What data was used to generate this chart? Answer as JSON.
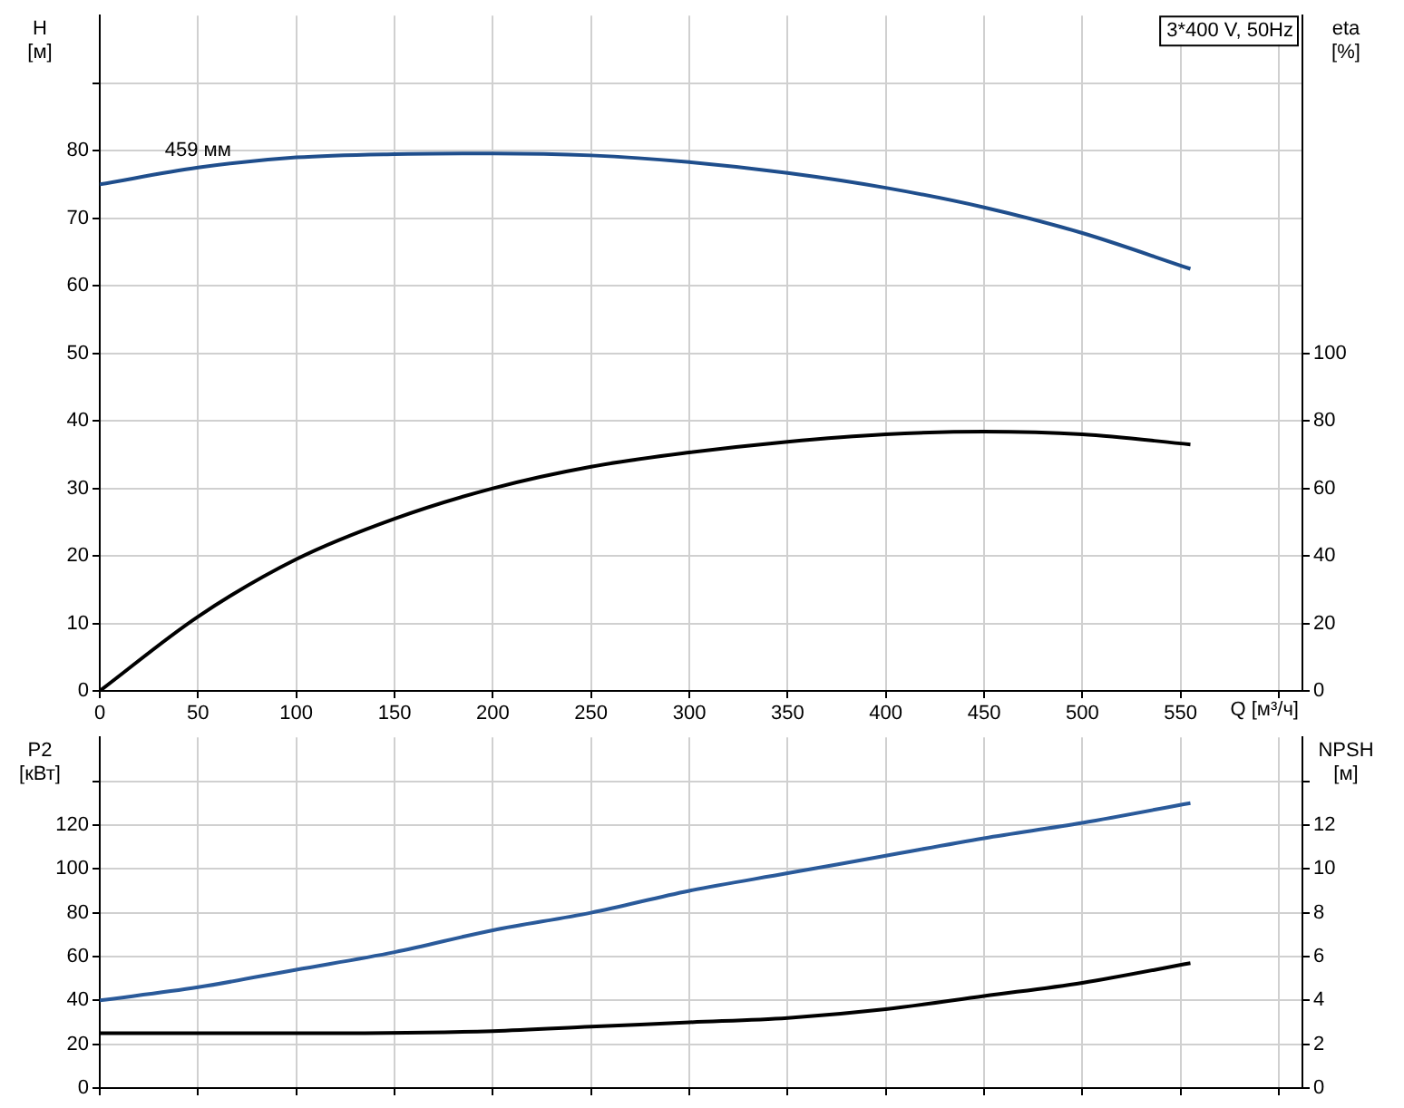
{
  "chart_data": [
    {
      "type": "line",
      "ylabel": "H [м]",
      "y2label": "eta [%]",
      "xlabel": "Q [м³/ч]",
      "annotations": [
        "3*400 V, 50Hz",
        {
          "text": "459 мм",
          "x": 50,
          "y": 77.5
        }
      ],
      "series": [
        {
          "color": "#1f4e8c",
          "x": [
            0,
            50,
            100,
            150,
            200,
            250,
            300,
            350,
            400,
            450,
            500,
            555
          ],
          "values": [
            75,
            77.5,
            79,
            79.5,
            79.6,
            79.3,
            78.3,
            76.7,
            74.5,
            71.6,
            67.8,
            62.5
          ]
        },
        {
          "color": "#000000",
          "axis": "y2",
          "x": [
            0,
            50,
            100,
            150,
            200,
            250,
            300,
            350,
            400,
            450,
            500,
            555
          ],
          "values": [
            0,
            22,
            39,
            51,
            60,
            66.4,
            70.6,
            73.8,
            76,
            76.8,
            76,
            73
          ]
        }
      ],
      "xlim": [
        0,
        612
      ],
      "xticks": [
        0,
        50,
        100,
        150,
        200,
        250,
        300,
        350,
        400,
        450,
        500,
        550,
        {
          "value": 600,
          "label": null
        }
      ],
      "ylim": [
        0,
        100
      ],
      "yticks": [
        0,
        10,
        20,
        30,
        40,
        50,
        60,
        70,
        80,
        {
          "value": 90,
          "label": null
        }
      ],
      "y2lim": [
        0,
        200
      ],
      "y2ticks": [
        0,
        20,
        40,
        60,
        80,
        100
      ],
      "grid": true
    },
    {
      "type": "line",
      "ylabel": "P2 [кВт]",
      "y2label": "NPSH [м]",
      "series": [
        {
          "color": "#2a5a9a",
          "x": [
            0,
            50,
            100,
            150,
            200,
            250,
            300,
            350,
            400,
            450,
            500,
            555
          ],
          "values": [
            40,
            46,
            54,
            62,
            72,
            80,
            90,
            98,
            106,
            114,
            121,
            130
          ]
        },
        {
          "color": "#000000",
          "axis": "y2",
          "x": [
            0,
            100,
            200,
            250,
            300,
            350,
            400,
            450,
            500,
            555
          ],
          "values": [
            2.5,
            2.5,
            2.6,
            2.8,
            3,
            3.2,
            3.6,
            4.2,
            4.8,
            5.7
          ]
        }
      ],
      "xlim": [
        0,
        612
      ],
      "xticks": [
        0,
        50,
        100,
        150,
        200,
        250,
        300,
        350,
        400,
        450,
        500,
        550,
        600
      ],
      "ylim": [
        0,
        160
      ],
      "yticks": [
        0,
        20,
        40,
        60,
        80,
        100,
        120,
        {
          "value": 140,
          "label": null
        }
      ],
      "y2lim": [
        0,
        16
      ],
      "y2ticks": [
        0,
        2,
        4,
        6,
        8,
        10,
        12,
        {
          "value": 14,
          "label": null
        }
      ],
      "tick_labels": "y",
      "grid": true
    }
  ]
}
